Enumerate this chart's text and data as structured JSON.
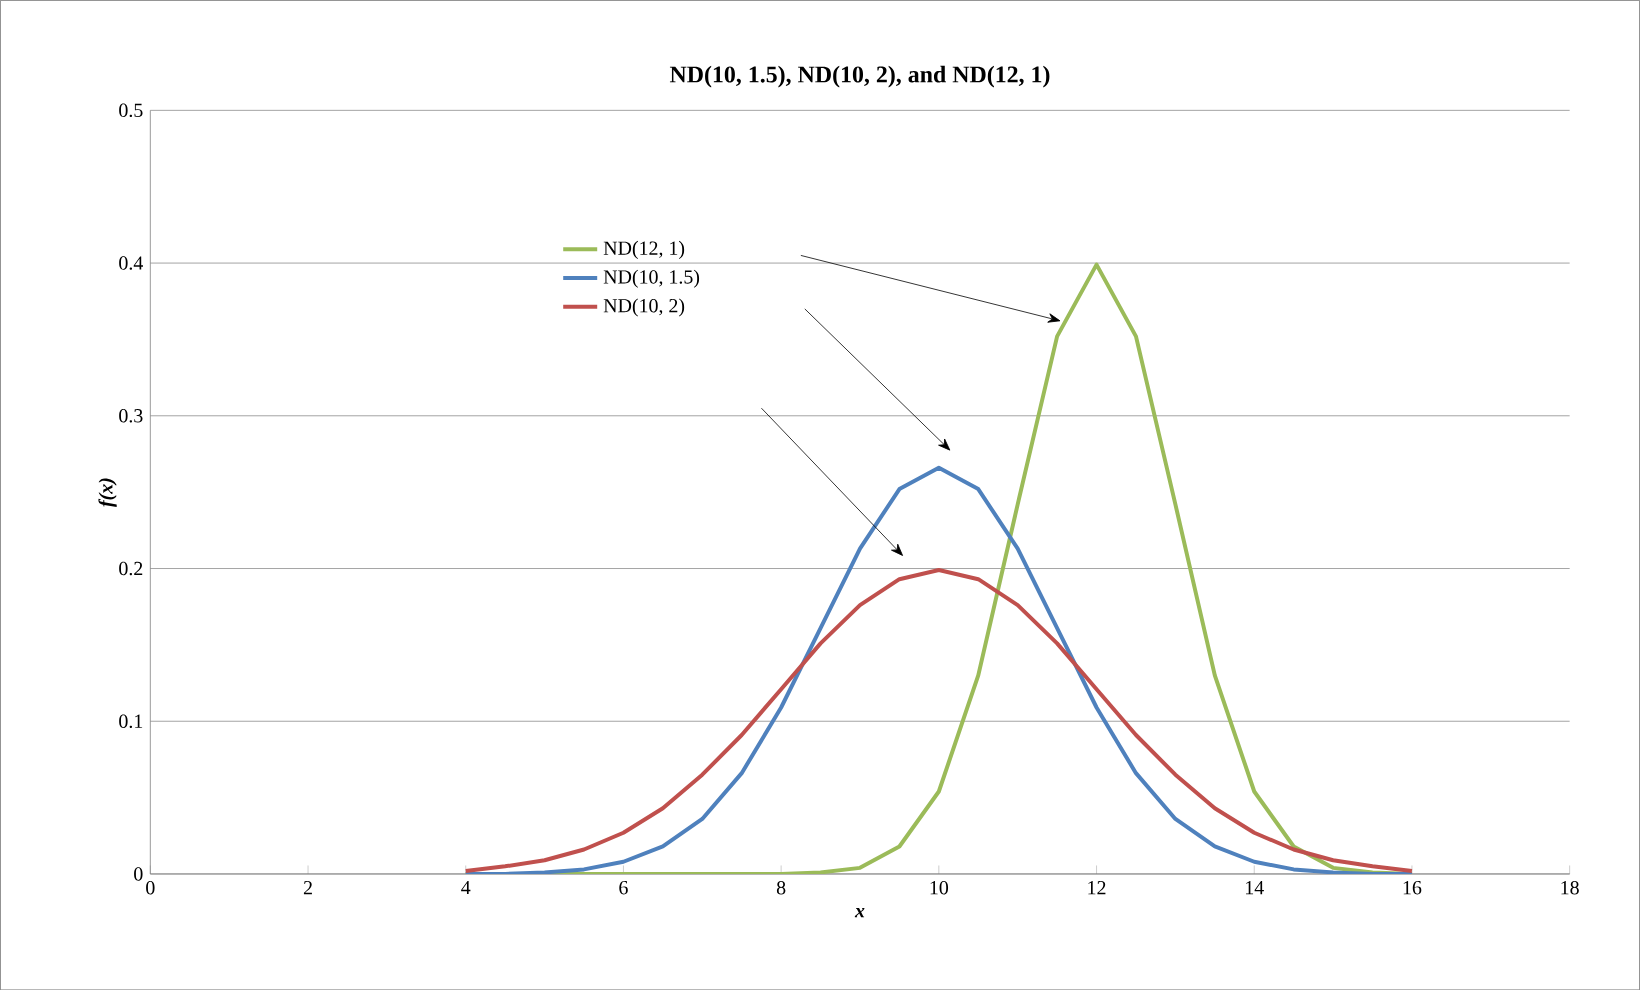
{
  "chart_data": {
    "type": "line",
    "title": "ND(10, 1.5), ND(10, 2), and ND(12, 1)",
    "xlabel": "x",
    "ylabel": "f(x)",
    "x": [
      4,
      4.5,
      5,
      5.5,
      6,
      6.5,
      7,
      7.5,
      8,
      8.5,
      9,
      9.5,
      10,
      10.5,
      11,
      11.5,
      12,
      12.5,
      13,
      13.5,
      14,
      14.5,
      15,
      15.5,
      16
    ],
    "series": [
      {
        "name": "ND(12, 1)",
        "color": "#9bbb59",
        "values": [
          0,
          0,
          0,
          0,
          0,
          0,
          0,
          0,
          0.0,
          0.001,
          0.004,
          0.018,
          0.054,
          0.13,
          0.242,
          0.352,
          0.399,
          0.352,
          0.242,
          0.13,
          0.054,
          0.018,
          0.004,
          0.001,
          0.0
        ]
      },
      {
        "name": "ND(10, 1.5)",
        "color": "#4f81bd",
        "values": [
          0.0,
          0.0,
          0.001,
          0.003,
          0.008,
          0.018,
          0.036,
          0.066,
          0.109,
          0.161,
          0.213,
          0.252,
          0.266,
          0.252,
          0.213,
          0.161,
          0.109,
          0.066,
          0.036,
          0.018,
          0.008,
          0.003,
          0.001,
          0.0,
          0.0
        ]
      },
      {
        "name": "ND(10, 2)",
        "color": "#c0504d",
        "values": [
          0.002,
          0.005,
          0.009,
          0.016,
          0.027,
          0.043,
          0.065,
          0.091,
          0.121,
          0.151,
          0.176,
          0.193,
          0.199,
          0.193,
          0.176,
          0.151,
          0.121,
          0.091,
          0.065,
          0.043,
          0.027,
          0.016,
          0.009,
          0.005,
          0.002
        ]
      }
    ],
    "xlim": [
      0,
      18
    ],
    "ylim": [
      0,
      0.5
    ],
    "xticks": [
      0,
      2,
      4,
      6,
      8,
      10,
      12,
      14,
      16,
      18
    ],
    "yticks": [
      0,
      0.1,
      0.2,
      0.3,
      0.4,
      0.5
    ],
    "grid": "y",
    "legend": "top left",
    "marker": "none",
    "line_style": "solid"
  }
}
